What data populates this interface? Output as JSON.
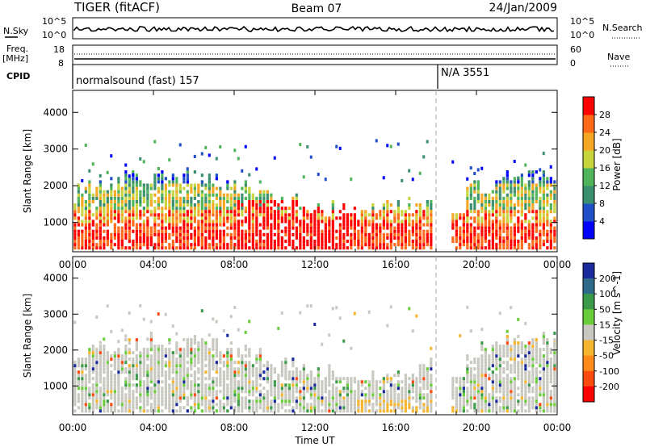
{
  "header": {
    "title_left": "TIGER (fitACF)",
    "title_center": "Beam 07",
    "title_right": "24/Jan/2009"
  },
  "status": {
    "nsky_label": "N.Sky",
    "nsky_ticks": [
      "10^5",
      "10^0"
    ],
    "nsearch_label": "N.Search",
    "nsearch_ticks": [
      "10^5",
      "10^0"
    ],
    "freq_label": "Freq.",
    "freq_unit": "[MHz]",
    "freq_ticks": [
      "18",
      "8"
    ],
    "nave_label": "Nave",
    "nave_ticks": [
      "60",
      "0"
    ],
    "cpid_label": "CPID",
    "cpid_segments": [
      "normalsound (fast) 157",
      "N/A 3551"
    ]
  },
  "chart_data": [
    {
      "type": "heatmap",
      "ylabel": "Slant Range [km]",
      "xlabel": "",
      "x_ticks": [
        "00:00",
        "04:00",
        "08:00",
        "12:00",
        "16:00",
        "20:00",
        "00:00"
      ],
      "y_ticks": [
        "1000",
        "2000",
        "3000",
        "4000"
      ],
      "ylim": [
        200,
        4600
      ],
      "xlim_hours": [
        0,
        24
      ],
      "colorbar": {
        "label": "Power [dB]",
        "ticks": [
          "4",
          "8",
          "12",
          "16",
          "20",
          "24",
          "28"
        ],
        "colors": [
          "#0000ff",
          "#2050c8",
          "#3a8f6e",
          "#4fb45a",
          "#c8d43c",
          "#f5a623",
          "#ff6a1a",
          "#ff0000"
        ]
      }
    },
    {
      "type": "heatmap",
      "ylabel": "Slant Range [km]",
      "xlabel": "Time UT",
      "x_ticks": [
        "00:00",
        "04:00",
        "08:00",
        "12:00",
        "16:00",
        "20:00",
        "00:00"
      ],
      "y_ticks": [
        "1000",
        "2000",
        "3000",
        "4000"
      ],
      "ylim": [
        200,
        4600
      ],
      "xlim_hours": [
        0,
        24
      ],
      "colorbar": {
        "label": "Velocity [m s^-1]",
        "ticks": [
          "200",
          "100",
          "50",
          "15",
          "-15",
          "-50",
          "-100",
          "-200"
        ],
        "colors": [
          "#1a2a9c",
          "#2e6b8a",
          "#3a9a4a",
          "#6acc3a",
          "#c8c8c0",
          "#f5b52e",
          "#ff8a1a",
          "#ff4a10",
          "#ff0000"
        ]
      }
    }
  ],
  "time_marker_hour": 18
}
